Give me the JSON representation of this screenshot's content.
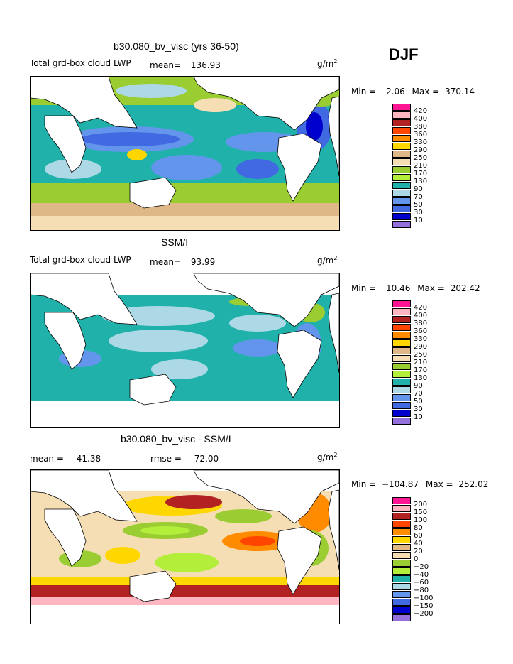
{
  "season": "DJF",
  "panels": [
    {
      "title": "b30.080_bv_visc (yrs 36-50)",
      "left_label": "Total grd-box cloud LWP",
      "mean_label": "mean=",
      "mean_value": "136.93",
      "units": "g/m",
      "units_sup": "2",
      "min_label": "Min =",
      "min_value": "2.06",
      "max_label": "Max =",
      "max_value": "370.14",
      "levels": [
        "420",
        "400",
        "380",
        "360",
        "330",
        "290",
        "250",
        "210",
        "170",
        "130",
        "90",
        "70",
        "50",
        "30",
        "10"
      ]
    },
    {
      "title": "SSM/I",
      "left_label": "Total grd-box cloud LWP",
      "mean_label": "mean=",
      "mean_value": "93.99",
      "units": "g/m",
      "units_sup": "2",
      "min_label": "Min =",
      "min_value": "10.46",
      "max_label": "Max =",
      "max_value": "202.42",
      "levels": [
        "420",
        "400",
        "380",
        "360",
        "330",
        "290",
        "250",
        "210",
        "170",
        "130",
        "90",
        "70",
        "50",
        "30",
        "10"
      ]
    },
    {
      "title": "b30.080_bv_visc - SSM/I",
      "left_label": "mean =",
      "mean_value": "41.38",
      "rmse_label": "rmse =",
      "rmse_value": "72.00",
      "units": "g/m",
      "units_sup": "2",
      "min_label": "Min =",
      "min_value": "−104.87",
      "max_label": "Max =",
      "max_value": "252.02",
      "levels": [
        "200",
        "150",
        "100",
        "80",
        "60",
        "40",
        "20",
        "0",
        "−20",
        "−40",
        "−60",
        "−80",
        "−100",
        "−150",
        "−200"
      ]
    }
  ],
  "colorbar_colors": [
    "#ff1493",
    "#ffb6c1",
    "#b22222",
    "#ff4500",
    "#ff8c00",
    "#ffd700",
    "#deb887",
    "#f5deb3",
    "#9acd32",
    "#b3ee3a",
    "#20b2aa",
    "#add8e6",
    "#6495ed",
    "#4169e1",
    "#0000cd",
    "#9370db"
  ]
}
